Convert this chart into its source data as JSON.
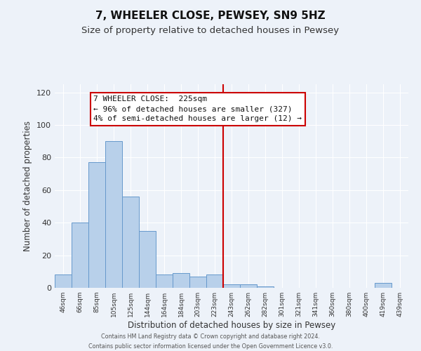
{
  "title": "7, WHEELER CLOSE, PEWSEY, SN9 5HZ",
  "subtitle": "Size of property relative to detached houses in Pewsey",
  "xlabel": "Distribution of detached houses by size in Pewsey",
  "ylabel": "Number of detached properties",
  "categories": [
    "46sqm",
    "66sqm",
    "85sqm",
    "105sqm",
    "125sqm",
    "144sqm",
    "164sqm",
    "184sqm",
    "203sqm",
    "223sqm",
    "243sqm",
    "262sqm",
    "282sqm",
    "301sqm",
    "321sqm",
    "341sqm",
    "360sqm",
    "380sqm",
    "400sqm",
    "419sqm",
    "439sqm"
  ],
  "values": [
    8,
    40,
    77,
    90,
    56,
    35,
    8,
    9,
    7,
    8,
    2,
    2,
    1,
    0,
    0,
    0,
    0,
    0,
    0,
    3,
    0
  ],
  "bar_color": "#b8d0ea",
  "bar_edge_color": "#6699cc",
  "vline_color": "#cc0000",
  "vline_index": 9,
  "annotation_marker": "7 WHEELER CLOSE:  225sqm",
  "annotation_line1": "← 96% of detached houses are smaller (327)",
  "annotation_line2": "4% of semi-detached houses are larger (12) →",
  "annotation_box_facecolor": "#ffffff",
  "annotation_box_edgecolor": "#cc0000",
  "ylim": [
    0,
    125
  ],
  "yticks": [
    0,
    20,
    40,
    60,
    80,
    100,
    120
  ],
  "footer1": "Contains HM Land Registry data © Crown copyright and database right 2024.",
  "footer2": "Contains public sector information licensed under the Open Government Licence v3.0.",
  "background_color": "#edf2f9",
  "plot_bg_color": "#edf2f9",
  "grid_color": "#ffffff",
  "title_fontsize": 11,
  "subtitle_fontsize": 9.5
}
